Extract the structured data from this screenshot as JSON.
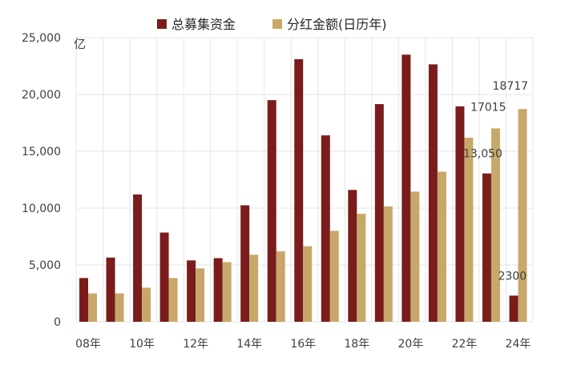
{
  "chart_data": {
    "type": "bar",
    "unit_label": "亿",
    "categories": [
      "08年",
      "09年",
      "10年",
      "11年",
      "12年",
      "13年",
      "14年",
      "15年",
      "16年",
      "17年",
      "18年",
      "19年",
      "20年",
      "21年",
      "22年",
      "23年",
      "24年"
    ],
    "x_tick_labels": [
      "08年",
      "",
      "10年",
      "",
      "12年",
      "",
      "14年",
      "",
      "16年",
      "",
      "18年",
      "",
      "20年",
      "",
      "22年",
      "",
      "24年"
    ],
    "series": [
      {
        "name": "总募集资金",
        "color": "#7b1c1c",
        "values": [
          3850,
          5650,
          11200,
          7850,
          5400,
          5600,
          10250,
          19500,
          23100,
          16400,
          11600,
          19150,
          23500,
          22650,
          18950,
          13050,
          2300
        ]
      },
      {
        "name": "分红金额(日历年)",
        "color": "#c8a86a",
        "values": [
          2500,
          2500,
          3000,
          3850,
          4700,
          5250,
          5900,
          6200,
          6650,
          8000,
          9500,
          10150,
          11450,
          13200,
          16200,
          17015,
          18717
        ]
      }
    ],
    "data_labels": [
      {
        "series": 0,
        "index": 15,
        "text": "13,050"
      },
      {
        "series": 0,
        "index": 16,
        "text": "2300"
      },
      {
        "series": 1,
        "index": 15,
        "text": "17015"
      },
      {
        "series": 1,
        "index": 16,
        "text": "18717"
      }
    ],
    "ylim": [
      0,
      25000
    ],
    "yticks": [
      0,
      5000,
      10000,
      15000,
      20000,
      25000
    ],
    "ytick_labels": [
      "0",
      "5,000",
      "10,000",
      "15,000",
      "20,000",
      "25,000"
    ],
    "grid": true,
    "legend_position": "top-center"
  }
}
